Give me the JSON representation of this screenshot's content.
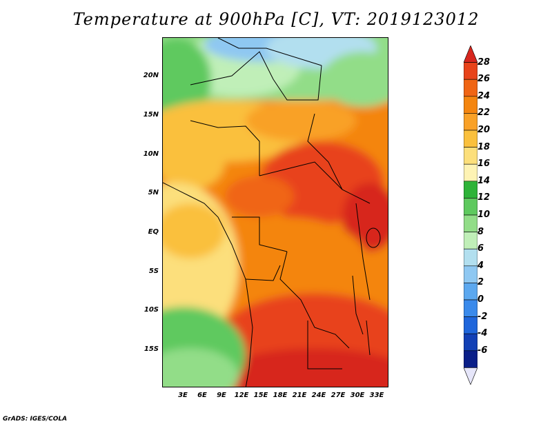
{
  "title": "Temperature at 900hPa [C], VT: 2019123012",
  "credit": "GrADS: IGES/COLA",
  "map": {
    "lat_labels": [
      "20N",
      "15N",
      "10N",
      "5N",
      "EQ",
      "5S",
      "10S",
      "15S"
    ],
    "lon_labels": [
      "3E",
      "6E",
      "9E",
      "12E",
      "15E",
      "18E",
      "21E",
      "24E",
      "27E",
      "30E",
      "33E"
    ]
  },
  "colorbar": {
    "labels": [
      "28",
      "26",
      "24",
      "22",
      "20",
      "18",
      "16",
      "14",
      "12",
      "10",
      "8",
      "6",
      "4",
      "2",
      "0",
      "-2",
      "-4",
      "-6"
    ],
    "colors": [
      "#d7261e",
      "#e8431a",
      "#f06514",
      "#f4850f",
      "#f9a127",
      "#fac03d",
      "#fcdf7b",
      "#fef3b4",
      "#2eb338",
      "#5ec95e",
      "#92dd88",
      "#c0efb8",
      "#b2dfef",
      "#8fc8f2",
      "#5ca8ef",
      "#3a8aeb",
      "#1f66db",
      "#1240b5",
      "#0a1f88",
      "#e6e6fa"
    ]
  }
}
